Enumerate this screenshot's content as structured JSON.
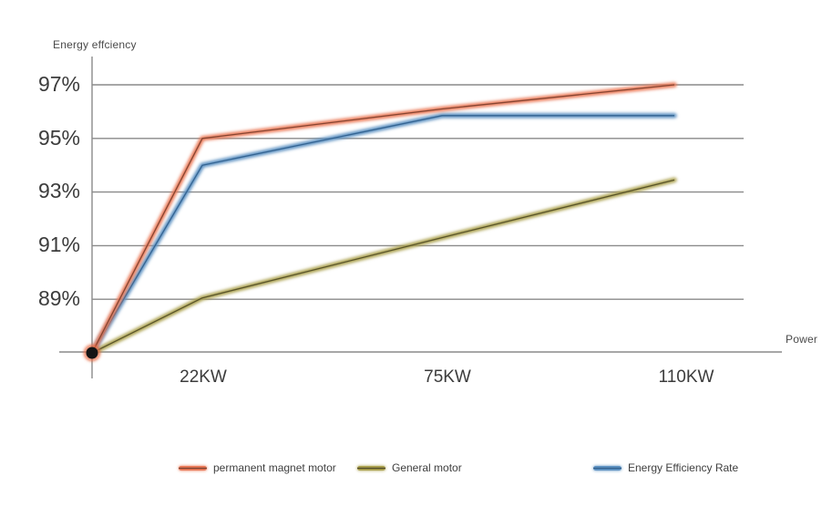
{
  "page": {
    "background": "#ffffff"
  },
  "chart_data": {
    "type": "line",
    "title": "",
    "y_axis_label": "Energy effciency",
    "x_axis_label": "Power",
    "y_ticks": [
      "97%",
      "95%",
      "93%",
      "91%",
      "89%"
    ],
    "y_tick_values": [
      97,
      95,
      93,
      91,
      89
    ],
    "x_ticks": [
      "22KW",
      "75KW",
      "110KW"
    ],
    "x_points": [
      "origin",
      "22KW",
      "75KW",
      "110KW"
    ],
    "y_origin_value": 87,
    "grid": true,
    "legend_position": "bottom",
    "axis_color": "#8a8a8a",
    "series": [
      {
        "name": "General motor",
        "color": "#ACA24F",
        "core_color": "#4F4A26",
        "values": [
          87,
          89.05,
          91.3,
          93.45
        ]
      },
      {
        "name": "Energy Efficiency Rate",
        "color": "#5F93C3",
        "core_color": "#2F5E8C",
        "values": [
          87,
          94,
          95.85,
          95.85
        ]
      },
      {
        "name": "permanent magnet motor",
        "color": "#EB7A58",
        "core_color": "#7B3F2E",
        "values": [
          87,
          95,
          96.1,
          97
        ]
      }
    ],
    "origin_marker": {
      "fill": "#141414",
      "glow": "#E86A42"
    }
  },
  "legend": {
    "order": [
      2,
      0,
      1
    ]
  }
}
